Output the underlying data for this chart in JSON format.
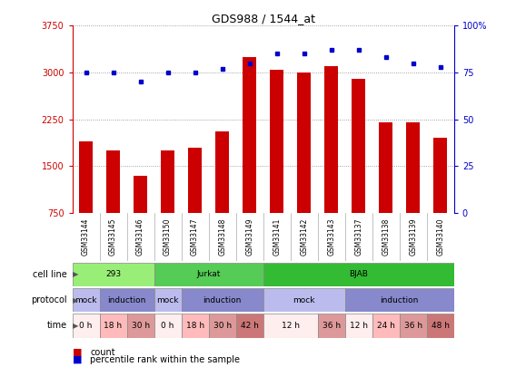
{
  "title": "GDS988 / 1544_at",
  "samples": [
    "GSM33144",
    "GSM33145",
    "GSM33146",
    "GSM33150",
    "GSM33147",
    "GSM33148",
    "GSM33149",
    "GSM33141",
    "GSM33142",
    "GSM33143",
    "GSM33137",
    "GSM33138",
    "GSM33139",
    "GSM33140"
  ],
  "counts": [
    1900,
    1750,
    1350,
    1750,
    1800,
    2050,
    3250,
    3050,
    3000,
    3100,
    2900,
    2200,
    2200,
    1950
  ],
  "percentile": [
    75,
    75,
    70,
    75,
    75,
    77,
    80,
    85,
    85,
    87,
    87,
    83,
    80,
    78
  ],
  "ylim_left": [
    750,
    3750
  ],
  "ylim_right": [
    0,
    100
  ],
  "yticks_left": [
    750,
    1500,
    2250,
    3000,
    3750
  ],
  "yticks_right": [
    0,
    25,
    50,
    75,
    100
  ],
  "bar_color": "#cc0000",
  "dot_color": "#0000cc",
  "cell_line_groups": [
    {
      "label": "293",
      "start": 0,
      "end": 3,
      "color": "#99ee77"
    },
    {
      "label": "Jurkat",
      "start": 3,
      "end": 7,
      "color": "#55cc55"
    },
    {
      "label": "BJAB",
      "start": 7,
      "end": 14,
      "color": "#33bb33"
    }
  ],
  "protocol_groups": [
    {
      "label": "mock",
      "start": 0,
      "end": 1,
      "color": "#bbbbee"
    },
    {
      "label": "induction",
      "start": 1,
      "end": 3,
      "color": "#8888cc"
    },
    {
      "label": "mock",
      "start": 3,
      "end": 4,
      "color": "#bbbbee"
    },
    {
      "label": "induction",
      "start": 4,
      "end": 7,
      "color": "#8888cc"
    },
    {
      "label": "mock",
      "start": 7,
      "end": 10,
      "color": "#bbbbee"
    },
    {
      "label": "induction",
      "start": 10,
      "end": 14,
      "color": "#8888cc"
    }
  ],
  "time_groups": [
    {
      "label": "0 h",
      "start": 0,
      "end": 1,
      "color": "#ffeeee"
    },
    {
      "label": "18 h",
      "start": 1,
      "end": 2,
      "color": "#ffbbbb"
    },
    {
      "label": "30 h",
      "start": 2,
      "end": 3,
      "color": "#dd9999"
    },
    {
      "label": "0 h",
      "start": 3,
      "end": 4,
      "color": "#ffeeee"
    },
    {
      "label": "18 h",
      "start": 4,
      "end": 5,
      "color": "#ffbbbb"
    },
    {
      "label": "30 h",
      "start": 5,
      "end": 6,
      "color": "#dd9999"
    },
    {
      "label": "42 h",
      "start": 6,
      "end": 7,
      "color": "#cc7777"
    },
    {
      "label": "12 h",
      "start": 7,
      "end": 9,
      "color": "#ffeeee"
    },
    {
      "label": "36 h",
      "start": 9,
      "end": 10,
      "color": "#dd9999"
    },
    {
      "label": "12 h",
      "start": 10,
      "end": 11,
      "color": "#ffeeee"
    },
    {
      "label": "24 h",
      "start": 11,
      "end": 12,
      "color": "#ffbbbb"
    },
    {
      "label": "36 h",
      "start": 12,
      "end": 13,
      "color": "#dd9999"
    },
    {
      "label": "48 h",
      "start": 13,
      "end": 14,
      "color": "#cc7777"
    }
  ],
  "row_labels": [
    "cell line",
    "protocol",
    "time"
  ],
  "bg_color": "#ffffff",
  "grid_color": "#888888",
  "left_axis_color": "#cc0000",
  "right_axis_color": "#0000cc",
  "tick_label_bg": "#cccccc"
}
